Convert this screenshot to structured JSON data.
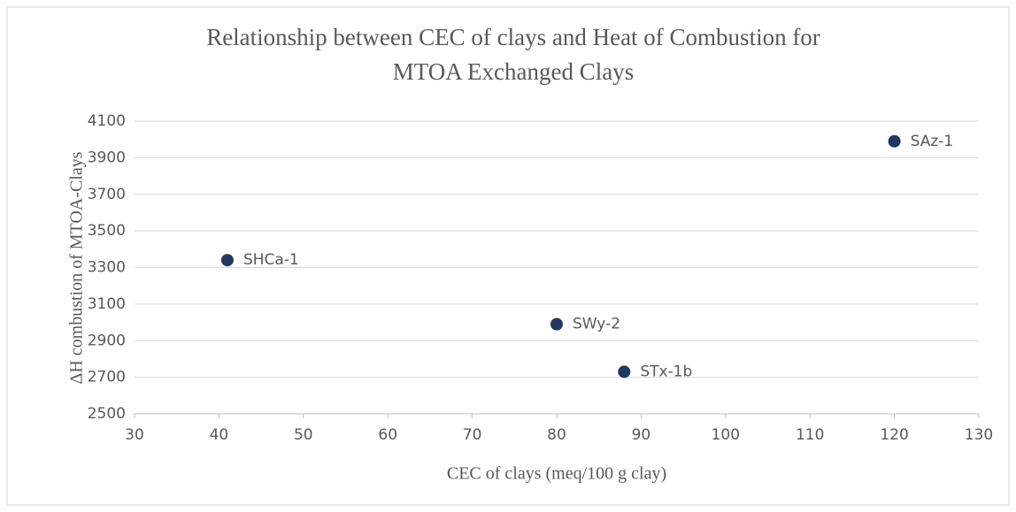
{
  "chart_data": {
    "type": "scatter",
    "title": [
      "Relationship between CEC of clays and Heat of Combustion for",
      "MTOA Exchanged Clays"
    ],
    "x_label": "CEC of clays (meq/100 g clay)",
    "y_label": "ΔH combustion of MTOA-Clays",
    "series": [
      {
        "color": "#203864",
        "x": [
          41,
          80,
          88,
          120
        ],
        "values": [
          3340,
          2990,
          2730,
          3990
        ],
        "labels": [
          "SHCa-1",
          "SWy-2",
          "STx-1b",
          "SAz-1"
        ]
      }
    ],
    "xlim": [
      30,
      130
    ],
    "xticks": [
      30,
      40,
      50,
      60,
      70,
      80,
      90,
      100,
      110,
      120,
      130
    ],
    "ylim": [
      2500,
      4100
    ],
    "yticks": [
      2500,
      2700,
      2900,
      3100,
      3300,
      3500,
      3700,
      3900,
      4100
    ],
    "grid": true
  }
}
